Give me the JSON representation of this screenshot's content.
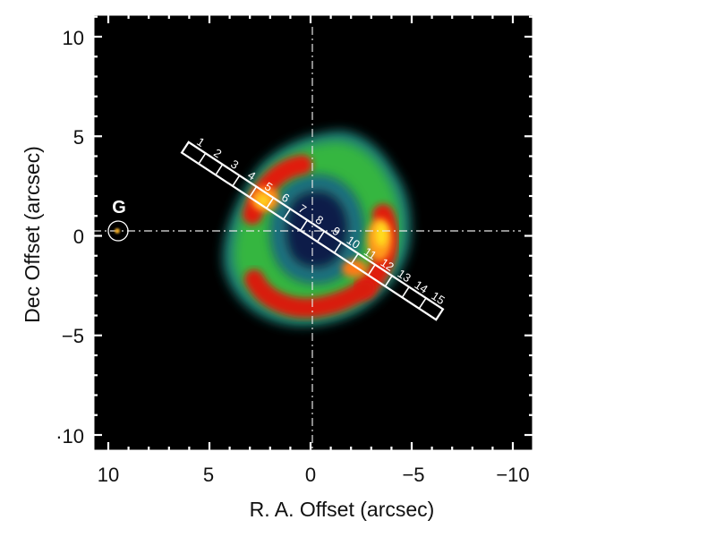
{
  "figure": {
    "xlabel": "R. A. Offset (arcsec)",
    "ylabel": "Dec Offset (arcsec)",
    "x_ticks": [
      "10",
      "5",
      "0",
      "−5",
      "−10"
    ],
    "y_ticks": [
      "10",
      "5",
      "0",
      "−5",
      "·10"
    ],
    "galaxy_label": "G",
    "slit_labels": [
      "1",
      "2",
      "3",
      "4",
      "5",
      "6",
      "7",
      "8",
      "9",
      "10",
      "11",
      "12",
      "13",
      "14",
      "15"
    ],
    "colors": {
      "background": "#000000",
      "frame": "#ffffff",
      "crosshair": "#e6e6e6",
      "emission_low": "#1f8a7a",
      "emission_mid": "#3fbf3f",
      "emission_high": "#e61e0a",
      "emission_peak": "#ffd21a"
    }
  }
}
